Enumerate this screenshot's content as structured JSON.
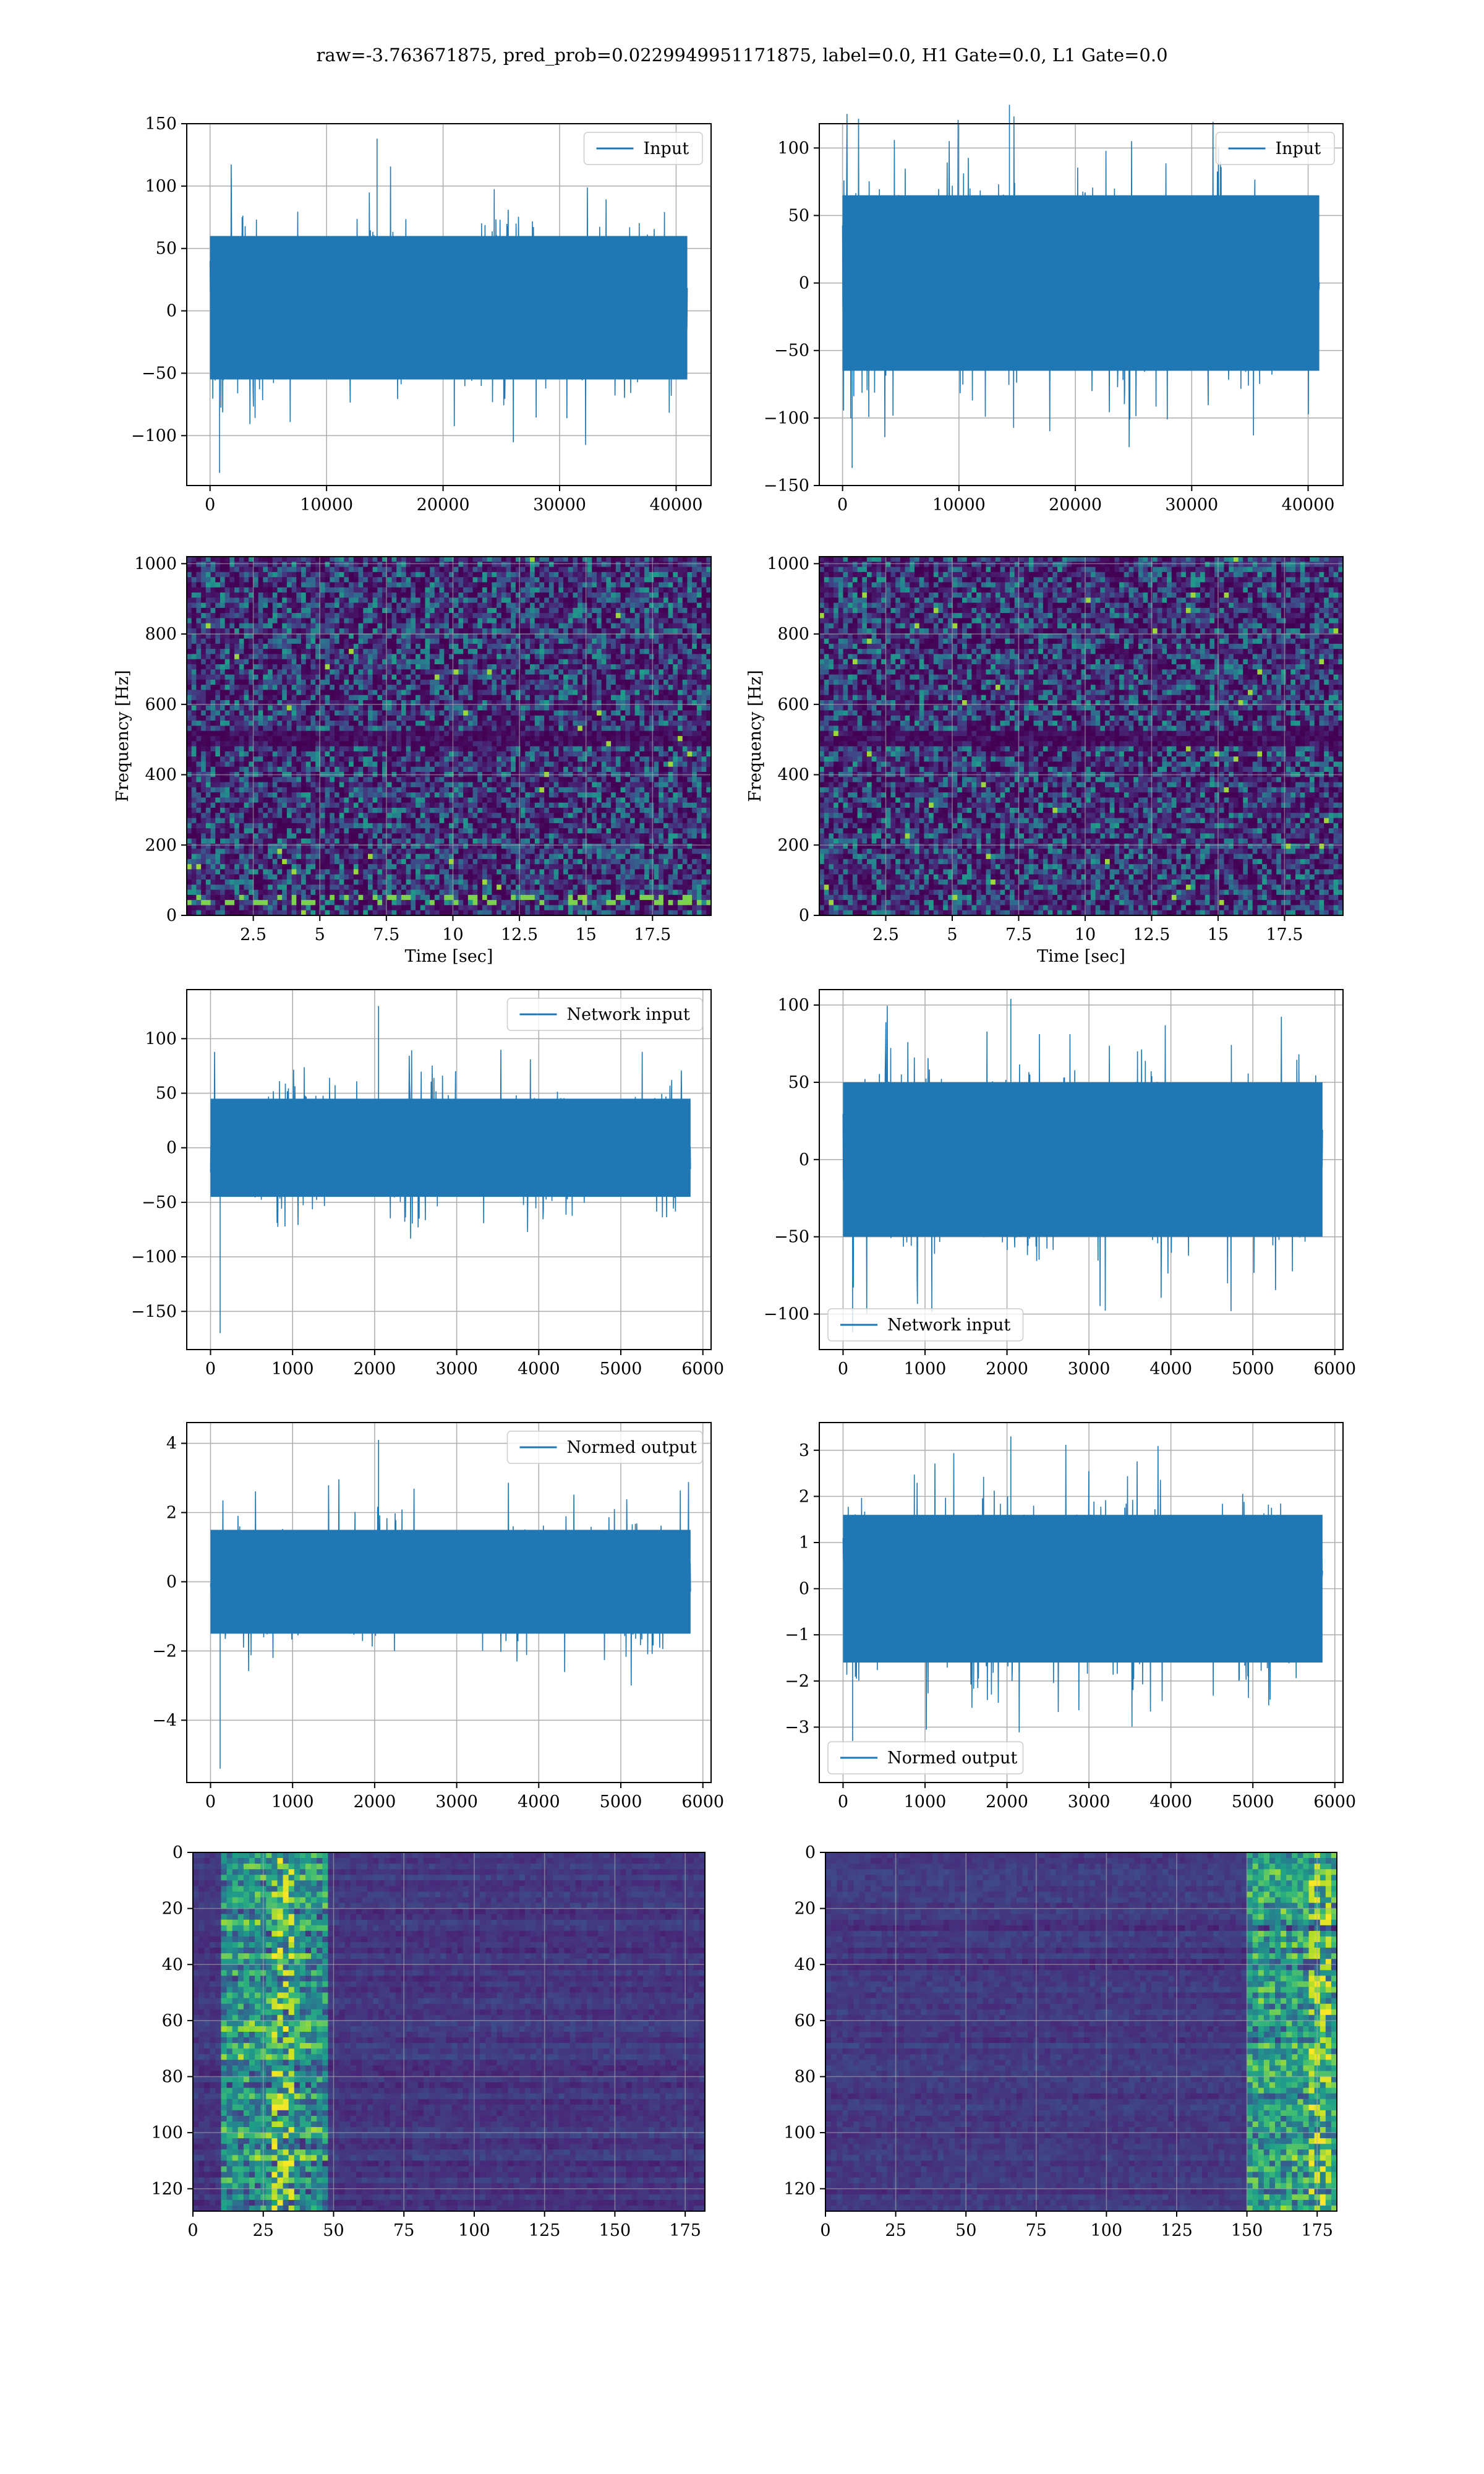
{
  "suptitle": "raw=-3.763671875, pred_prob=0.0229949951171875, label=0.0, H1 Gate=0.0, L1 Gate=0.0",
  "colors": {
    "line": "#1f77b4",
    "grid": "#b0b0b0",
    "frame": "#000000"
  },
  "chart_data": [
    {
      "panel": "row1-left",
      "type": "line",
      "title": "",
      "xlabel": "",
      "ylabel": "",
      "xlim": [
        -2000,
        43000
      ],
      "ylim": [
        -140,
        150
      ],
      "xticks": [
        0,
        10000,
        20000,
        30000,
        40000
      ],
      "yticks": [
        -100,
        -50,
        0,
        50,
        100,
        150
      ],
      "legend": {
        "position": "top-right",
        "entries": [
          "Input"
        ]
      },
      "series": [
        {
          "name": "Input",
          "x_range": [
            0,
            40960
          ],
          "band": [
            -55,
            60
          ],
          "peaks": [
            -130,
            138
          ]
        }
      ]
    },
    {
      "panel": "row1-right",
      "type": "line",
      "title": "",
      "xlabel": "",
      "ylabel": "",
      "xlim": [
        -2000,
        43000
      ],
      "ylim": [
        -150,
        118
      ],
      "xticks": [
        0,
        10000,
        20000,
        30000,
        40000
      ],
      "yticks": [
        -150,
        -100,
        -50,
        0,
        50,
        100
      ],
      "legend": {
        "position": "top-right",
        "entries": [
          "Input"
        ]
      },
      "series": [
        {
          "name": "Input",
          "x_range": [
            0,
            40960
          ],
          "band": [
            -65,
            65
          ],
          "peaks": [
            -137,
            132
          ]
        }
      ]
    },
    {
      "panel": "row2-left",
      "type": "heatmap",
      "title": "",
      "xlabel": "Time [sec]",
      "ylabel": "Frequency [Hz]",
      "xlim": [
        0,
        19.7
      ],
      "ylim": [
        0,
        1020
      ],
      "xticks": [
        2.5,
        5,
        7.5,
        10,
        12.5,
        15,
        17.5
      ],
      "yticks": [
        0,
        200,
        400,
        600,
        800,
        1000
      ],
      "colormap": "viridis",
      "features": {
        "dark_band_hz": 500,
        "low_freq_bright_hz": 48
      }
    },
    {
      "panel": "row2-right",
      "type": "heatmap",
      "title": "",
      "xlabel": "Time [sec]",
      "ylabel": "Frequency [Hz]",
      "xlim": [
        0,
        19.7
      ],
      "ylim": [
        0,
        1020
      ],
      "xticks": [
        2.5,
        5,
        7.5,
        10,
        12.5,
        15,
        17.5
      ],
      "yticks": [
        0,
        200,
        400,
        600,
        800,
        1000
      ],
      "colormap": "viridis",
      "features": {
        "dark_band_hz": 500
      }
    },
    {
      "panel": "row3-left",
      "type": "line",
      "title": "",
      "xlabel": "",
      "ylabel": "",
      "xlim": [
        -290,
        6100
      ],
      "ylim": [
        -185,
        145
      ],
      "xticks": [
        0,
        1000,
        2000,
        3000,
        4000,
        5000,
        6000
      ],
      "yticks": [
        -150,
        -100,
        -50,
        0,
        50,
        100
      ],
      "legend": {
        "position": "top-right",
        "entries": [
          "Network input"
        ]
      },
      "series": [
        {
          "name": "Network input",
          "x_range": [
            0,
            5850
          ],
          "band": [
            -45,
            45
          ],
          "peaks": [
            -170,
            130
          ]
        }
      ]
    },
    {
      "panel": "row3-right",
      "type": "line",
      "title": "",
      "xlabel": "",
      "ylabel": "",
      "xlim": [
        -290,
        6100
      ],
      "ylim": [
        -123,
        110
      ],
      "xticks": [
        0,
        1000,
        2000,
        3000,
        4000,
        5000,
        6000
      ],
      "yticks": [
        -100,
        -50,
        0,
        50,
        100
      ],
      "legend": {
        "position": "bottom-left",
        "entries": [
          "Network input"
        ]
      },
      "series": [
        {
          "name": "Network input",
          "x_range": [
            0,
            5850
          ],
          "band": [
            -50,
            50
          ],
          "peaks": [
            -112,
            104
          ]
        }
      ]
    },
    {
      "panel": "row4-left",
      "type": "line",
      "title": "",
      "xlabel": "",
      "ylabel": "",
      "xlim": [
        -290,
        6100
      ],
      "ylim": [
        -5.8,
        4.6
      ],
      "xticks": [
        0,
        1000,
        2000,
        3000,
        4000,
        5000,
        6000
      ],
      "yticks": [
        -4,
        -2,
        0,
        2,
        4
      ],
      "legend": {
        "position": "top-right",
        "entries": [
          "Normed output"
        ]
      },
      "series": [
        {
          "name": "Normed output",
          "x_range": [
            0,
            5850
          ],
          "band": [
            -1.5,
            1.5
          ],
          "peaks": [
            -5.4,
            4.1
          ]
        }
      ]
    },
    {
      "panel": "row4-right",
      "type": "line",
      "title": "",
      "xlabel": "",
      "ylabel": "",
      "xlim": [
        -290,
        6100
      ],
      "ylim": [
        -4.2,
        3.6
      ],
      "xticks": [
        0,
        1000,
        2000,
        3000,
        4000,
        5000,
        6000
      ],
      "yticks": [
        -3,
        -2,
        -1,
        0,
        1,
        2,
        3
      ],
      "legend": {
        "position": "bottom-left",
        "entries": [
          "Normed output"
        ]
      },
      "series": [
        {
          "name": "Normed output",
          "x_range": [
            0,
            5850
          ],
          "band": [
            -1.6,
            1.6
          ],
          "peaks": [
            -3.3,
            3.3
          ]
        }
      ]
    },
    {
      "panel": "row5-left",
      "type": "heatmap",
      "title": "",
      "xlabel": "",
      "ylabel": "",
      "xlim": [
        0,
        182
      ],
      "ylim": [
        128,
        0
      ],
      "xticks": [
        0,
        25,
        50,
        75,
        100,
        125,
        150,
        175
      ],
      "yticks": [
        0,
        20,
        40,
        60,
        80,
        100,
        120
      ],
      "colormap": "viridis",
      "features": {
        "bright_columns": [
          10,
          48
        ],
        "hotspot_column": 32
      }
    },
    {
      "panel": "row5-right",
      "type": "heatmap",
      "title": "",
      "xlabel": "",
      "ylabel": "",
      "xlim": [
        0,
        182
      ],
      "ylim": [
        128,
        0
      ],
      "xticks": [
        0,
        25,
        50,
        75,
        100,
        125,
        150,
        175
      ],
      "yticks": [
        0,
        20,
        40,
        60,
        80,
        100,
        120
      ],
      "colormap": "viridis",
      "features": {
        "bright_columns": [
          150,
          182
        ],
        "hotspot_column": 176
      }
    }
  ]
}
